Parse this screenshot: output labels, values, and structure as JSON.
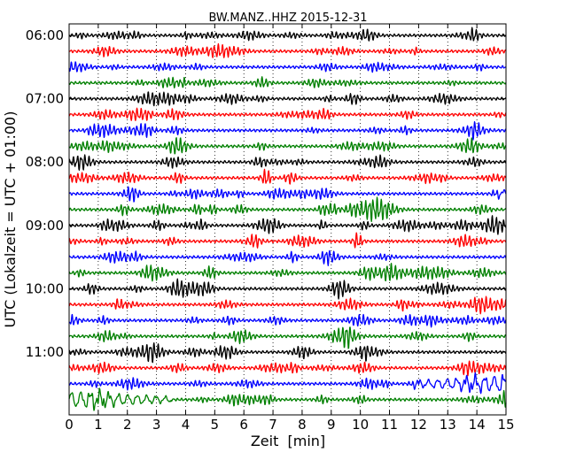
{
  "chart_data": {
    "type": "line",
    "title": "BW.MANZ..HHZ 2015-12-31",
    "xlabel": "Zeit  [min]",
    "ylabel": "UTC (Lokalzeit = UTC + 01:00)",
    "xlim": [
      0,
      15
    ],
    "x_ticks": [
      0,
      1,
      2,
      3,
      4,
      5,
      6,
      7,
      8,
      9,
      10,
      11,
      12,
      13,
      14,
      15
    ],
    "x_tick_labels": [
      "0",
      "1",
      "2",
      "3",
      "4",
      "5",
      "6",
      "7",
      "8",
      "9",
      "10",
      "11",
      "12",
      "13",
      "14",
      "15"
    ],
    "y_tick_labels": [
      "06:00",
      "07:00",
      "08:00",
      "09:00",
      "10:00",
      "11:00"
    ],
    "y_tick_rows": [
      0,
      4,
      8,
      12,
      16,
      20
    ],
    "trace_interval_minutes": 15,
    "trace_count": 24,
    "color_cycle": [
      "#000000",
      "#ff0000",
      "#0000ff",
      "#008000"
    ],
    "grid": "vertical dotted lines at each minute",
    "events": [
      {
        "row": 22,
        "from_minute": 11.8,
        "to_minute": 15,
        "description": "growing long-period oscillation"
      },
      {
        "row": 23,
        "from_minute": 0,
        "to_minute": 3.5,
        "description": "decaying long-period oscillation"
      },
      {
        "row": 10,
        "from_minute": 14.6,
        "to_minute": 15,
        "description": "onset of larger amplitude"
      }
    ]
  }
}
